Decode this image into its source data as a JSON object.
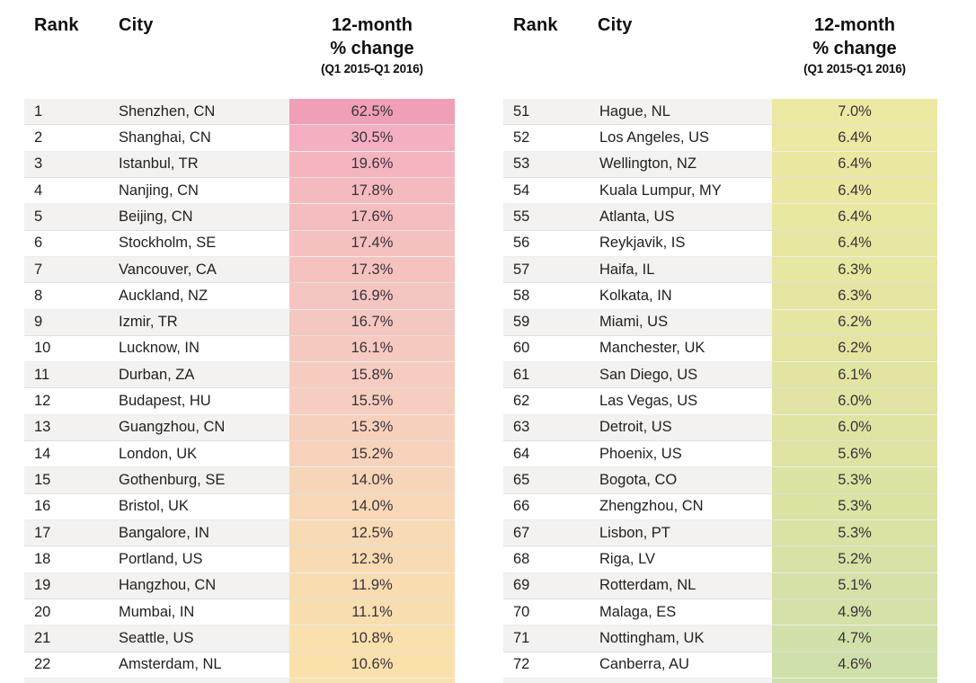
{
  "header": {
    "rank_label": "Rank",
    "city_label": "City",
    "change_label_line1": "12-month",
    "change_label_line2": "% change",
    "change_label_line3": "(Q1 2015-Q1 2016)"
  },
  "colors": {
    "background": "#ffffff",
    "row_alt_bg": "#f3f2f0",
    "row_bg": "#ffffff",
    "header_text": "#0f0f0f",
    "body_text": "#1f1f1f",
    "left_change_stops": [
      {
        "t": 0,
        "c": "#ef9fb6"
      },
      {
        "t": 0.048,
        "c": "#f4b0c0"
      },
      {
        "t": 0.143,
        "c": "#f4babe"
      },
      {
        "t": 0.333,
        "c": "#f5c5c1"
      },
      {
        "t": 0.476,
        "c": "#f6ccc0"
      },
      {
        "t": 0.619,
        "c": "#f7d3bc"
      },
      {
        "t": 0.762,
        "c": "#f8dab4"
      },
      {
        "t": 1,
        "c": "#fae1ab"
      }
    ],
    "right_change_stops": [
      {
        "t": 0,
        "c": "#ece9a2"
      },
      {
        "t": 0.19,
        "c": "#e9e8a1"
      },
      {
        "t": 0.381,
        "c": "#e4e6a1"
      },
      {
        "t": 0.571,
        "c": "#e0e4a2"
      },
      {
        "t": 0.714,
        "c": "#dce3a3"
      },
      {
        "t": 0.857,
        "c": "#d6e1a7"
      },
      {
        "t": 1,
        "c": "#d0e0aa"
      }
    ]
  },
  "chart_data": {
    "type": "table",
    "columns": [
      "Rank",
      "City",
      "12-month % change (Q1 2015-Q1 2016)"
    ],
    "value_suffix": "%",
    "panels": [
      {
        "rows": [
          [
            1,
            "Shenzhen, CN",
            62.5
          ],
          [
            2,
            "Shanghai, CN",
            30.5
          ],
          [
            3,
            "Istanbul, TR",
            19.6
          ],
          [
            4,
            "Nanjing, CN",
            17.8
          ],
          [
            5,
            "Beijing, CN",
            17.6
          ],
          [
            6,
            "Stockholm, SE",
            17.4
          ],
          [
            7,
            "Vancouver, CA",
            17.3
          ],
          [
            8,
            "Auckland, NZ",
            16.9
          ],
          [
            9,
            "Izmir, TR",
            16.7
          ],
          [
            10,
            "Lucknow, IN",
            16.1
          ],
          [
            11,
            "Durban, ZA",
            15.8
          ],
          [
            12,
            "Budapest, HU",
            15.5
          ],
          [
            13,
            "Guangzhou, CN",
            15.3
          ],
          [
            14,
            "London, UK",
            15.2
          ],
          [
            15,
            "Gothenburg, SE",
            14.0
          ],
          [
            16,
            "Bristol, UK",
            14.0
          ],
          [
            17,
            "Bangalore, IN",
            12.5
          ],
          [
            18,
            "Portland, US",
            12.3
          ],
          [
            19,
            "Hangzhou, CN",
            11.9
          ],
          [
            20,
            "Mumbai, IN",
            11.1
          ],
          [
            21,
            "Seattle, US",
            10.8
          ],
          [
            22,
            "Amsterdam, NL",
            10.6
          ]
        ]
      },
      {
        "rows": [
          [
            51,
            "Hague, NL",
            7.0
          ],
          [
            52,
            "Los Angeles, US",
            6.4
          ],
          [
            53,
            "Wellington, NZ",
            6.4
          ],
          [
            54,
            "Kuala Lumpur, MY",
            6.4
          ],
          [
            55,
            "Atlanta, US",
            6.4
          ],
          [
            56,
            "Reykjavik, IS",
            6.4
          ],
          [
            57,
            "Haifa, IL",
            6.3
          ],
          [
            58,
            "Kolkata, IN",
            6.3
          ],
          [
            59,
            "Miami, US",
            6.2
          ],
          [
            60,
            "Manchester, UK",
            6.2
          ],
          [
            61,
            "San Diego, US",
            6.1
          ],
          [
            62,
            "Las Vegas, US",
            6.0
          ],
          [
            63,
            "Detroit, US",
            6.0
          ],
          [
            64,
            "Phoenix, US",
            5.6
          ],
          [
            65,
            "Bogota, CO",
            5.3
          ],
          [
            66,
            "Zhengzhou, CN",
            5.3
          ],
          [
            67,
            "Lisbon, PT",
            5.3
          ],
          [
            68,
            "Riga, LV",
            5.2
          ],
          [
            69,
            "Rotterdam, NL",
            5.1
          ],
          [
            70,
            "Malaga, ES",
            4.9
          ],
          [
            71,
            "Nottingham, UK",
            4.7
          ],
          [
            72,
            "Canberra, AU",
            4.6
          ]
        ]
      }
    ]
  }
}
